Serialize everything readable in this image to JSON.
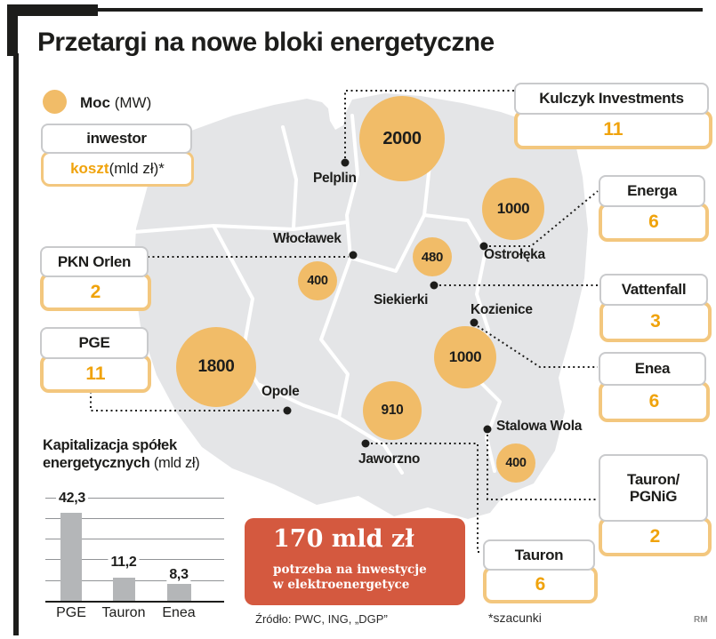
{
  "title": "Przetargi na nowe bloki energetyczne",
  "legend": {
    "power_label": "Moc",
    "power_unit": " (MW)",
    "investor_label": "inwestor",
    "cost_label": "koszt",
    "cost_unit": " (mld zł)*"
  },
  "colors": {
    "bubble_orange": "#f1bc68",
    "value_orange": "#f0a30c",
    "map_gray": "#e4e5e7",
    "bar_gray": "#b4b6b8",
    "callout_red": "#d4593f",
    "frame_black": "#1d1d1b"
  },
  "map": {
    "plants": [
      {
        "city": "Pelplin",
        "mw": "2000"
      },
      {
        "city": "Włocławek",
        "mw": "400"
      },
      {
        "city": "Ostrołęka",
        "mw": "1000"
      },
      {
        "city": "Siekierki",
        "mw": "480"
      },
      {
        "city": "Kozienice",
        "mw": "1000"
      },
      {
        "city": "Opole",
        "mw": "1800"
      },
      {
        "city": "Jaworzno",
        "mw": "910"
      },
      {
        "city": "Stalowa Wola",
        "mw": "400"
      }
    ]
  },
  "investors": [
    {
      "name": "Kulczyk Investments",
      "cost": "11"
    },
    {
      "name": "Energa",
      "cost": "6"
    },
    {
      "name": "Vattenfall",
      "cost": "3"
    },
    {
      "name": "Enea",
      "cost": "6"
    },
    {
      "name": "Tauron/",
      "name2": "PGNiG",
      "cost": "2"
    },
    {
      "name": "Tauron",
      "cost": "6"
    },
    {
      "name": "PKN Orlen",
      "cost": "2"
    },
    {
      "name": "PGE",
      "cost": "11"
    }
  ],
  "chart_data": {
    "type": "bar",
    "title": "Kapitalizacja spółek",
    "title_line2": "energetycznych",
    "title_unit": " (mld zł)",
    "categories": [
      "PGE",
      "Tauron",
      "Enea"
    ],
    "values": [
      42.3,
      11.2,
      8.3
    ],
    "value_labels": [
      "42,3",
      "11,2",
      "8,3"
    ],
    "ylim": [
      0,
      50
    ],
    "gridline_step": 10,
    "grid": true,
    "legend_position": "none"
  },
  "callout": {
    "headline": "170 mld zł",
    "line1": "potrzeba na inwestycje",
    "line2": "w elektroenergetyce"
  },
  "footer": {
    "source": "Źródło: PWC, ING, „DGP”",
    "note": "*szacunki",
    "credit": "RM"
  }
}
